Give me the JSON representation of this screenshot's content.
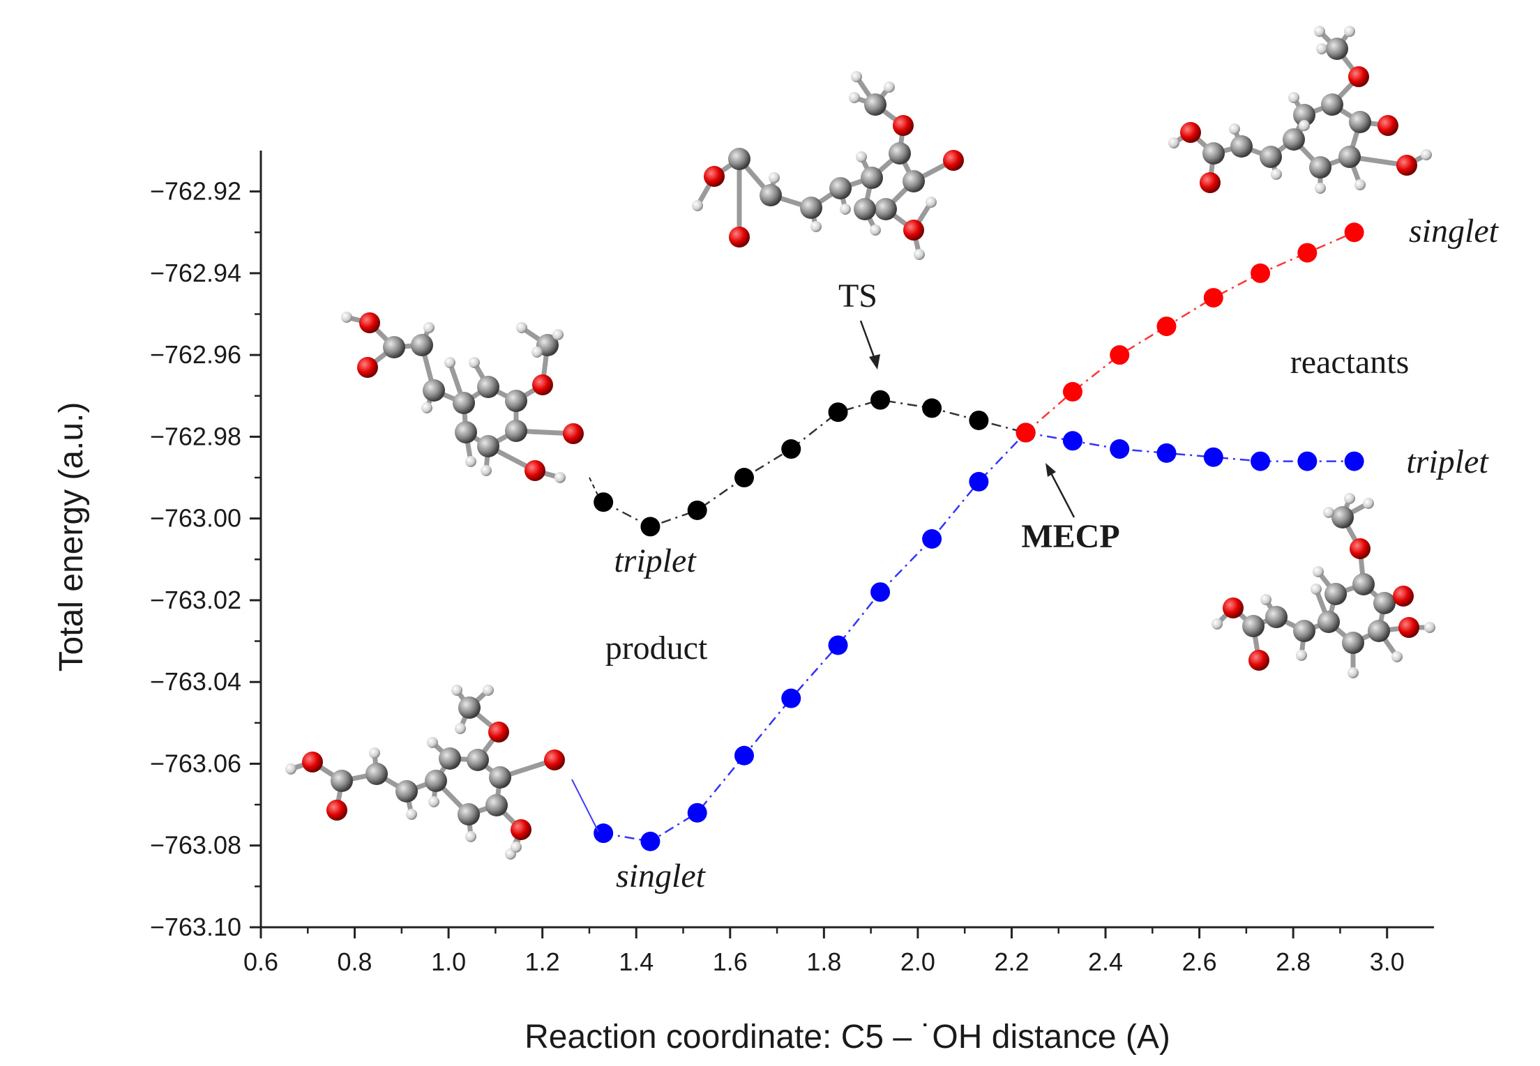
{
  "chart_data": {
    "type": "line",
    "xlabel": "Reaction coordinate: C5 – ˙OH distance (A)",
    "ylabel": "Total energy (a.u.)",
    "xlim": [
      0.6,
      3.1
    ],
    "ylim": [
      -763.1,
      -762.91
    ],
    "x_ticks": [
      "0.6",
      "0.8",
      "1.0",
      "1.2",
      "1.4",
      "1.6",
      "1.8",
      "2.0",
      "2.2",
      "2.4",
      "2.6",
      "2.8",
      "3.0"
    ],
    "y_ticks": [
      "−762.92",
      "−762.94",
      "−762.96",
      "−762.98",
      "−763.00",
      "−763.02",
      "−763.04",
      "−763.06",
      "−763.08",
      "−763.10"
    ],
    "grid": false,
    "series": [
      {
        "color": "#000000",
        "x": [
          1.33,
          1.43,
          1.53,
          1.63,
          1.73,
          1.83,
          1.92,
          2.03,
          2.13,
          2.23
        ],
        "y": [
          -762.996,
          -763.002,
          -762.998,
          -762.99,
          -762.983,
          -762.974,
          -762.971,
          -762.973,
          -762.976,
          -762.979
        ]
      },
      {
        "color": "#0000ff",
        "x": [
          1.33,
          1.43,
          1.53,
          1.63,
          1.73,
          1.83,
          1.92,
          2.03,
          2.13,
          2.23,
          2.33,
          2.43,
          2.53,
          2.63,
          2.73,
          2.83,
          2.93
        ],
        "y": [
          -763.077,
          -763.079,
          -763.072,
          -763.058,
          -763.044,
          -763.031,
          -763.018,
          -763.005,
          -762.991,
          -762.979,
          -762.981,
          -762.983,
          -762.984,
          -762.985,
          -762.986,
          -762.986,
          -762.986
        ]
      },
      {
        "color": "#ff0000",
        "x": [
          2.23,
          2.33,
          2.43,
          2.53,
          2.63,
          2.73,
          2.83,
          2.93
        ],
        "y": [
          -762.979,
          -762.969,
          -762.96,
          -762.953,
          -762.946,
          -762.94,
          -762.935,
          -762.93
        ]
      }
    ],
    "annotations": {
      "ts": "TS",
      "mecp": "MECP",
      "reactants": "reactants",
      "product": "product",
      "singlet_top": "singlet",
      "triplet_right": "triplet",
      "triplet_min": "triplet",
      "singlet_min": "singlet"
    }
  },
  "colors": {
    "atom_oxygen": "#e60000",
    "atom_carbon": "#8c8c8c",
    "atom_hydrogen": "#e6e6e6"
  }
}
